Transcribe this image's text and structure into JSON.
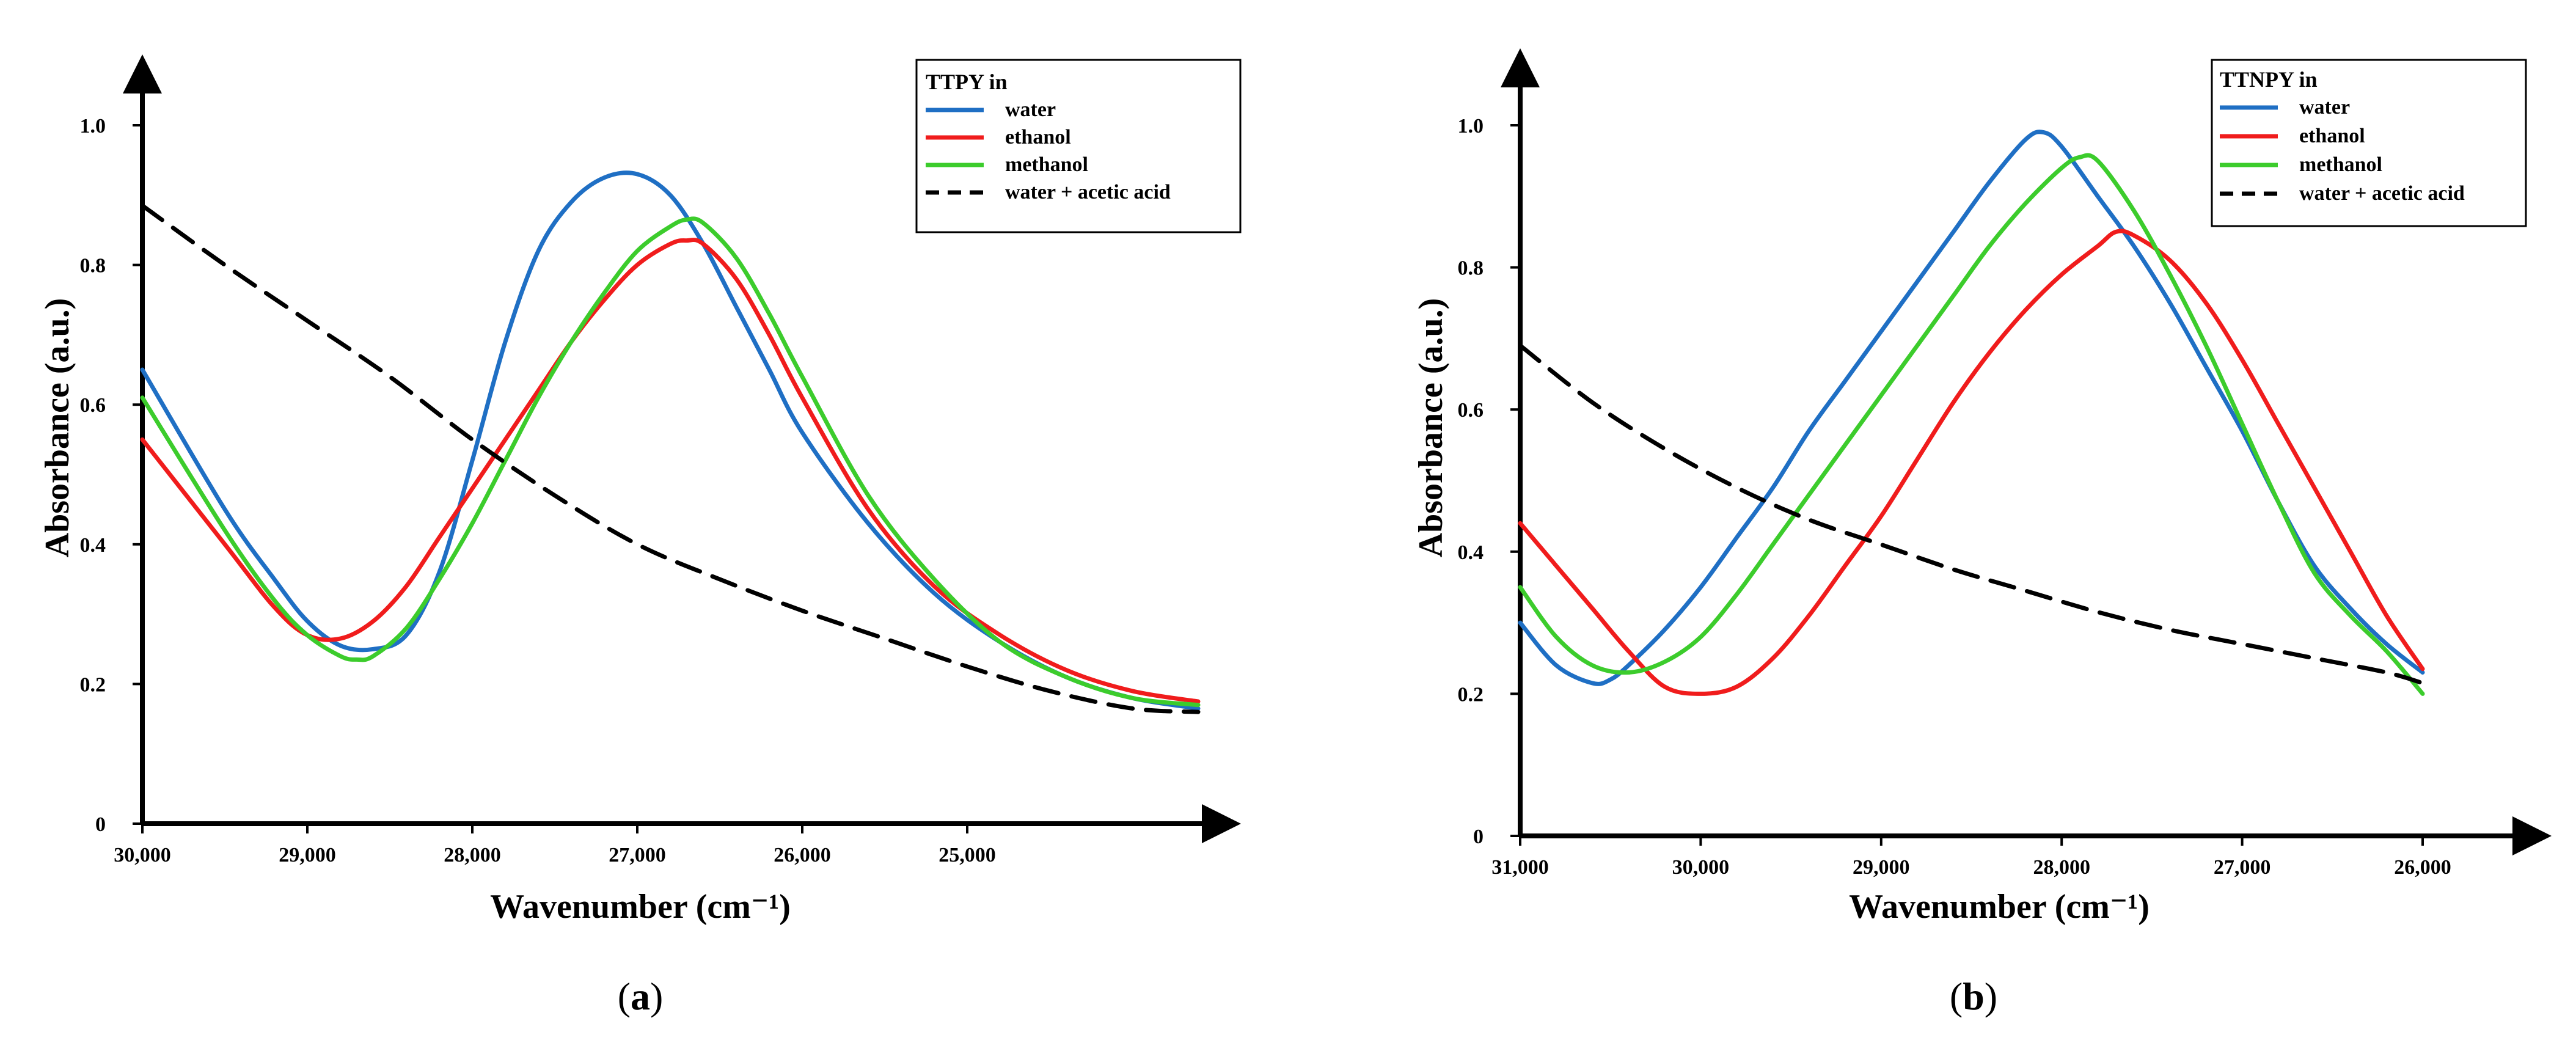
{
  "colors": {
    "water": "#1f6fc4",
    "ethanol": "#f01c1c",
    "methanol": "#3ccc2c",
    "water_acetic": "#000000"
  },
  "panels": [
    {
      "id": "a",
      "label_paren_open": "(",
      "label_letter": "a",
      "label_paren_close": ")",
      "legend_title": "TTPY in"
    },
    {
      "id": "b",
      "label_paren_open": "(",
      "label_letter": "b",
      "label_paren_close": ")",
      "legend_title": "TTNPY in"
    }
  ],
  "chart_data": [
    {
      "type": "line",
      "title": "",
      "xlabel": "Wavenumber (cm⁻¹)",
      "ylabel": "Absorbance (a.u.)",
      "x_reversed": true,
      "xlim": [
        30000,
        23600
      ],
      "ylim": [
        0,
        1.0
      ],
      "xticks": [
        30000,
        29000,
        28000,
        27000,
        26000,
        25000
      ],
      "xtick_labels": [
        "30,000",
        "29,000",
        "28,000",
        "27,000",
        "26,000",
        "25,000"
      ],
      "yticks": [
        0,
        0.2,
        0.4,
        0.6,
        0.8,
        1.0
      ],
      "ytick_labels": [
        "0",
        "0.2",
        "0.4",
        "0.6",
        "0.8",
        "1.0"
      ],
      "legend_title": "TTPY in",
      "legend_position": "top-right",
      "series": [
        {
          "name": "water",
          "color_key": "water",
          "dash": "solid",
          "x": [
            30000,
            29500,
            29200,
            29000,
            28800,
            28600,
            28400,
            28200,
            28000,
            27800,
            27600,
            27400,
            27200,
            27000,
            26800,
            26600,
            26400,
            26200,
            26000,
            25600,
            25200,
            24800,
            24400,
            24000,
            23600
          ],
          "y": [
            0.65,
            0.45,
            0.35,
            0.29,
            0.255,
            0.25,
            0.27,
            0.36,
            0.52,
            0.69,
            0.82,
            0.89,
            0.925,
            0.93,
            0.9,
            0.83,
            0.74,
            0.65,
            0.56,
            0.43,
            0.33,
            0.26,
            0.21,
            0.18,
            0.165
          ]
        },
        {
          "name": "ethanol",
          "color_key": "ethanol",
          "dash": "solid",
          "x": [
            30000,
            29500,
            29200,
            29000,
            28800,
            28600,
            28400,
            28200,
            28000,
            27800,
            27600,
            27400,
            27200,
            27000,
            26800,
            26700,
            26600,
            26400,
            26200,
            26000,
            25600,
            25200,
            24800,
            24400,
            24000,
            23600
          ],
          "y": [
            0.55,
            0.4,
            0.31,
            0.27,
            0.265,
            0.29,
            0.34,
            0.41,
            0.48,
            0.55,
            0.62,
            0.69,
            0.75,
            0.8,
            0.83,
            0.835,
            0.83,
            0.78,
            0.7,
            0.61,
            0.45,
            0.34,
            0.27,
            0.22,
            0.19,
            0.175
          ]
        },
        {
          "name": "methanol",
          "color_key": "methanol",
          "dash": "solid",
          "x": [
            30000,
            29500,
            29200,
            29000,
            28800,
            28700,
            28600,
            28400,
            28200,
            28000,
            27800,
            27600,
            27400,
            27200,
            27000,
            26800,
            26700,
            26600,
            26400,
            26200,
            26000,
            25600,
            25200,
            24800,
            24400,
            24000,
            23600
          ],
          "y": [
            0.61,
            0.42,
            0.32,
            0.27,
            0.24,
            0.235,
            0.24,
            0.28,
            0.35,
            0.43,
            0.52,
            0.61,
            0.69,
            0.76,
            0.82,
            0.855,
            0.865,
            0.86,
            0.81,
            0.73,
            0.64,
            0.47,
            0.35,
            0.26,
            0.21,
            0.18,
            0.17
          ]
        },
        {
          "name": "water + acetic acid",
          "color_key": "water_acetic",
          "dash": "dashed",
          "x": [
            30000,
            29500,
            29000,
            28500,
            28000,
            27500,
            27000,
            26500,
            26000,
            25500,
            25000,
            24500,
            24000,
            23600
          ],
          "y": [
            0.885,
            0.8,
            0.72,
            0.64,
            0.55,
            0.47,
            0.4,
            0.35,
            0.305,
            0.265,
            0.225,
            0.19,
            0.165,
            0.16
          ]
        }
      ]
    },
    {
      "type": "line",
      "title": "",
      "xlabel": "Wavenumber (cm⁻¹)",
      "ylabel": "Absorbance (a.u.)",
      "x_reversed": true,
      "xlim": [
        31000,
        25400
      ],
      "ylim": [
        0,
        1.0
      ],
      "xticks": [
        31000,
        30000,
        29000,
        28000,
        27000,
        26000
      ],
      "xtick_labels": [
        "31,000",
        "30,000",
        "29,000",
        "28,000",
        "27,000",
        "26,000"
      ],
      "yticks": [
        0,
        0.2,
        0.4,
        0.6,
        0.8,
        1.0
      ],
      "ytick_labels": [
        "0",
        "0.2",
        "0.4",
        "0.6",
        "0.8",
        "1.0"
      ],
      "legend_title": "TTNPY in",
      "legend_position": "top-right",
      "series": [
        {
          "name": "water",
          "color_key": "water",
          "dash": "solid",
          "x": [
            31000,
            30800,
            30600,
            30500,
            30400,
            30200,
            30000,
            29800,
            29600,
            29400,
            29200,
            29000,
            28800,
            28600,
            28400,
            28200,
            28100,
            28000,
            27800,
            27600,
            27400,
            27200,
            27000,
            26800,
            26600,
            26400,
            26200,
            26000
          ],
          "y": [
            0.3,
            0.24,
            0.215,
            0.22,
            0.24,
            0.29,
            0.35,
            0.42,
            0.49,
            0.57,
            0.64,
            0.71,
            0.78,
            0.85,
            0.92,
            0.98,
            0.99,
            0.97,
            0.9,
            0.83,
            0.75,
            0.66,
            0.57,
            0.47,
            0.38,
            0.32,
            0.27,
            0.23
          ]
        },
        {
          "name": "ethanol",
          "color_key": "ethanol",
          "dash": "solid",
          "x": [
            31000,
            30800,
            30600,
            30400,
            30200,
            30000,
            29800,
            29600,
            29400,
            29200,
            29000,
            28800,
            28600,
            28400,
            28200,
            28000,
            27800,
            27700,
            27600,
            27400,
            27200,
            27000,
            26800,
            26600,
            26400,
            26200,
            26000
          ],
          "y": [
            0.44,
            0.38,
            0.32,
            0.26,
            0.21,
            0.2,
            0.21,
            0.25,
            0.31,
            0.38,
            0.45,
            0.53,
            0.61,
            0.68,
            0.74,
            0.79,
            0.83,
            0.85,
            0.845,
            0.81,
            0.75,
            0.67,
            0.58,
            0.49,
            0.4,
            0.31,
            0.235
          ]
        },
        {
          "name": "methanol",
          "color_key": "methanol",
          "dash": "solid",
          "x": [
            31000,
            30800,
            30600,
            30400,
            30200,
            30000,
            29800,
            29600,
            29400,
            29200,
            29000,
            28800,
            28600,
            28400,
            28200,
            28000,
            27900,
            27800,
            27600,
            27400,
            27200,
            27000,
            26800,
            26600,
            26400,
            26200,
            26000
          ],
          "y": [
            0.35,
            0.28,
            0.24,
            0.23,
            0.245,
            0.28,
            0.34,
            0.41,
            0.48,
            0.55,
            0.62,
            0.69,
            0.76,
            0.83,
            0.89,
            0.94,
            0.955,
            0.95,
            0.88,
            0.79,
            0.69,
            0.58,
            0.47,
            0.37,
            0.31,
            0.26,
            0.2
          ]
        },
        {
          "name": "water + acetic acid",
          "color_key": "water_acetic",
          "dash": "dashed",
          "x": [
            31000,
            30600,
            30200,
            29800,
            29400,
            29000,
            28600,
            28200,
            27800,
            27400,
            27000,
            26600,
            26200,
            26000
          ],
          "y": [
            0.69,
            0.61,
            0.545,
            0.49,
            0.445,
            0.41,
            0.375,
            0.345,
            0.315,
            0.29,
            0.27,
            0.25,
            0.23,
            0.215
          ]
        }
      ]
    }
  ]
}
